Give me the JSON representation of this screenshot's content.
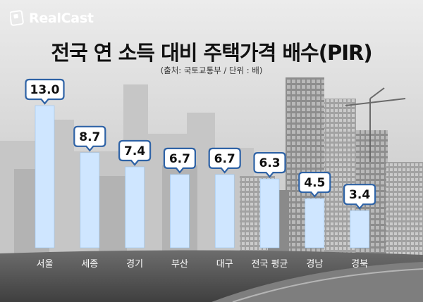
{
  "brand": {
    "name": "RealCast",
    "icon": "realcast-logo-icon"
  },
  "chart_data": {
    "type": "bar",
    "title": "전국 연 소득 대비 주택가격 배수(PIR)",
    "subtitle": "(출처: 국토교통부 / 단위 : 배)",
    "categories": [
      "서울",
      "세종",
      "경기",
      "부산",
      "대구",
      "전국 평균",
      "경남",
      "경북"
    ],
    "values": [
      13.0,
      8.7,
      7.4,
      6.7,
      6.7,
      6.3,
      4.5,
      3.4
    ],
    "value_labels": [
      "13.0",
      "8.7",
      "7.4",
      "6.7",
      "6.7",
      "6.3",
      "4.5",
      "3.4"
    ],
    "ylim": [
      0,
      13.0
    ],
    "grid": false,
    "legend": "none",
    "colors": {
      "bar": "#cfe6ff",
      "bar_edge": "#9cc6ee",
      "label_bg": "#ffffff",
      "label_border": "#2f63a6",
      "label_text": "#111111",
      "category_text": "#ffffff"
    }
  }
}
